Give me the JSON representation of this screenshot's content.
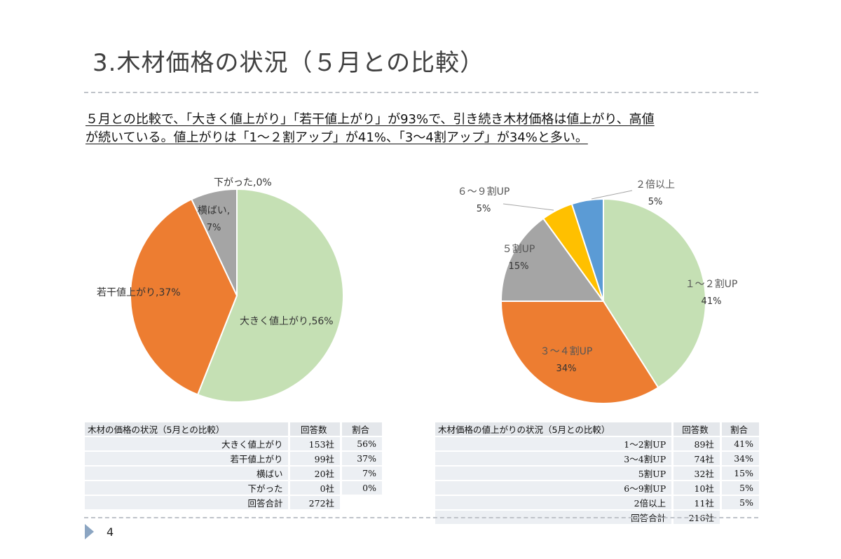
{
  "page": {
    "title": "3.木材価格の状況（５月との比較）",
    "summary_line1": "５月との比較で、「大きく値上がり」「若干値上がり」が93%で、引き続き木材価格は値上がり、高値",
    "summary_line2": "が続いている。値上がりは「1～２割アップ」が41%、「3～4割アップ」が34%と多い。",
    "slide_number": "4"
  },
  "chart_data": [
    {
      "type": "pie",
      "slices": [
        {
          "label": "大きく値上がり",
          "value": 56,
          "value_text": "56%",
          "color": "#c5e0b4"
        },
        {
          "label": "若干値上がり",
          "value": 37,
          "value_text": "37%",
          "color": "#ed7d31"
        },
        {
          "label": "横ばい",
          "value": 7,
          "value_text": "7%",
          "color": "#a5a5a5"
        },
        {
          "label": "下がった",
          "value": 0,
          "value_text": "0%",
          "color": "#4472c4"
        }
      ]
    },
    {
      "type": "pie",
      "slices": [
        {
          "label": "１～２割UP",
          "value": 41,
          "value_text": "41%",
          "color": "#c5e0b4"
        },
        {
          "label": "３～４割UP",
          "value": 34,
          "value_text": "34%",
          "color": "#ed7d31"
        },
        {
          "label": "５割UP",
          "value": 15,
          "value_text": "15%",
          "color": "#a5a5a5"
        },
        {
          "label": "６～９割UP",
          "value": 5,
          "value_text": "5%",
          "color": "#ffc000"
        },
        {
          "label": "２倍以上",
          "value": 5,
          "value_text": "5%",
          "color": "#5b9bd5"
        }
      ]
    }
  ],
  "table_left": {
    "headers": [
      "木材の価格の状況（5月との比較）",
      "回答数",
      "割合"
    ],
    "rows": [
      [
        "大きく値上がり",
        "153社",
        "56%"
      ],
      [
        "若干値上がり",
        "99社",
        "37%"
      ],
      [
        "横ばい",
        "20社",
        "7%"
      ],
      [
        "下がった",
        "0社",
        "0%"
      ]
    ],
    "total": [
      "回答合計",
      "272社"
    ]
  },
  "table_right": {
    "headers": [
      "木材価格の値上がりの状況（5月との比較）",
      "回答数",
      "割合"
    ],
    "rows": [
      [
        "1～2割UP",
        "89社",
        "41%"
      ],
      [
        "3～4割UP",
        "74社",
        "34%"
      ],
      [
        "5割UP",
        "32社",
        "15%"
      ],
      [
        "6～9割UP",
        "10社",
        "5%"
      ],
      [
        "2倍以上",
        "11社",
        "5%"
      ]
    ],
    "total": [
      "回答合計",
      "216社"
    ]
  }
}
